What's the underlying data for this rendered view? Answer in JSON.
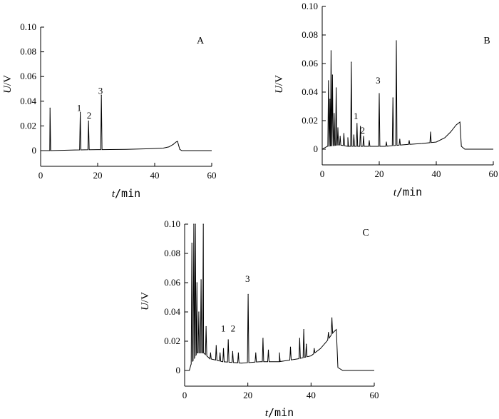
{
  "chart_data": [
    {
      "type": "line",
      "panel_label": "A",
      "xlabel_italic": "t",
      "xlabel_unit": "/min",
      "ylabel_italic": "U",
      "ylabel_unit": "/V",
      "xlim": [
        0,
        60
      ],
      "ylim": [
        0,
        0.1
      ],
      "xticks": [
        0,
        20,
        40,
        60
      ],
      "yticks": [
        0,
        0.02,
        0.04,
        0.06,
        0.08,
        0.1
      ],
      "ytick_labels": [
        "0",
        "0.02",
        "0.04",
        "0.06",
        "0.08",
        "0.10"
      ],
      "grid": false,
      "baseline": [
        [
          0,
          0
        ],
        [
          3.2,
          0
        ],
        [
          12,
          0.0005
        ],
        [
          20,
          0.0008
        ],
        [
          30,
          0.001
        ],
        [
          38,
          0.0015
        ],
        [
          43,
          0.002
        ],
        [
          45,
          0.003
        ],
        [
          46.5,
          0.005
        ],
        [
          47.5,
          0.007
        ],
        [
          48,
          0.0075
        ],
        [
          48.8,
          0.001
        ],
        [
          49.5,
          0
        ],
        [
          56,
          0
        ],
        [
          60,
          0
        ]
      ],
      "peaks": [
        {
          "x": 3.3,
          "y": 0.0345
        },
        {
          "x": 13.9,
          "y": 0.031
        },
        {
          "x": 16.8,
          "y": 0.024
        },
        {
          "x": 21.3,
          "y": 0.045
        }
      ],
      "annotations": [
        {
          "text": "1",
          "x": 13.5,
          "y": 0.032
        },
        {
          "text": "2",
          "x": 17.0,
          "y": 0.026
        },
        {
          "text": "3",
          "x": 21.0,
          "y": 0.046
        }
      ]
    },
    {
      "type": "line",
      "panel_label": "B",
      "xlabel_italic": "t",
      "xlabel_unit": "/min",
      "ylabel_italic": "U",
      "ylabel_unit": "/V",
      "xlim": [
        0,
        60
      ],
      "ylim": [
        0,
        0.1
      ],
      "xticks": [
        0,
        20,
        40,
        60
      ],
      "yticks": [
        0,
        0.02,
        0.04,
        0.06,
        0.08,
        0.1
      ],
      "ytick_labels": [
        "0",
        "0.02",
        "0.04",
        "0.06",
        "0.08",
        "0.10"
      ],
      "grid": false,
      "baseline": [
        [
          0,
          0
        ],
        [
          1.8,
          0.002
        ],
        [
          6,
          0.003
        ],
        [
          9,
          0.002
        ],
        [
          15,
          0.002
        ],
        [
          22,
          0.002
        ],
        [
          28,
          0.003
        ],
        [
          35,
          0.004
        ],
        [
          40,
          0.005
        ],
        [
          43,
          0.008
        ],
        [
          45,
          0.012
        ],
        [
          47,
          0.017
        ],
        [
          48.3,
          0.019
        ],
        [
          48.8,
          0.002
        ],
        [
          50,
          0
        ],
        [
          60,
          0
        ]
      ],
      "peaks": [
        {
          "x": 2.2,
          "y": 0.048
        },
        {
          "x": 2.7,
          "y": 0.035
        },
        {
          "x": 3.1,
          "y": 0.069
        },
        {
          "x": 3.6,
          "y": 0.052
        },
        {
          "x": 4.2,
          "y": 0.025
        },
        {
          "x": 4.9,
          "y": 0.043
        },
        {
          "x": 5.5,
          "y": 0.015
        },
        {
          "x": 6.3,
          "y": 0.009
        },
        {
          "x": 7.6,
          "y": 0.011
        },
        {
          "x": 9.0,
          "y": 0.008
        },
        {
          "x": 10.2,
          "y": 0.061
        },
        {
          "x": 11.1,
          "y": 0.01
        },
        {
          "x": 12.2,
          "y": 0.018
        },
        {
          "x": 13.4,
          "y": 0.016
        },
        {
          "x": 14.5,
          "y": 0.009
        },
        {
          "x": 16.5,
          "y": 0.006
        },
        {
          "x": 20.0,
          "y": 0.039
        },
        {
          "x": 22.5,
          "y": 0.005
        },
        {
          "x": 24.8,
          "y": 0.036
        },
        {
          "x": 26.0,
          "y": 0.076
        },
        {
          "x": 27.2,
          "y": 0.007
        },
        {
          "x": 30.5,
          "y": 0.006
        },
        {
          "x": 38.0,
          "y": 0.012
        }
      ],
      "annotations": [
        {
          "text": "1",
          "x": 11.8,
          "y": 0.021
        },
        {
          "text": "2",
          "x": 14.2,
          "y": 0.011
        },
        {
          "text": "3",
          "x": 19.6,
          "y": 0.046
        }
      ]
    },
    {
      "type": "line",
      "panel_label": "C",
      "xlabel_italic": "t",
      "xlabel_unit": "/min",
      "ylabel_italic": "U",
      "ylabel_unit": "/V",
      "xlim": [
        0,
        60
      ],
      "ylim": [
        0,
        0.1
      ],
      "xticks": [
        0,
        20,
        40,
        60
      ],
      "yticks": [
        0,
        0.02,
        0.04,
        0.06,
        0.08,
        0.1
      ],
      "ytick_labels": [
        "0",
        "0.02",
        "0.04",
        "0.06",
        "0.08",
        "0.10"
      ],
      "grid": false,
      "baseline": [
        [
          0,
          0
        ],
        [
          1.5,
          0
        ],
        [
          2.0,
          0.004
        ],
        [
          4,
          0.012
        ],
        [
          6,
          0.012
        ],
        [
          8,
          0.008
        ],
        [
          12,
          0.006
        ],
        [
          18,
          0.005
        ],
        [
          24,
          0.006
        ],
        [
          30,
          0.006
        ],
        [
          36,
          0.008
        ],
        [
          40,
          0.01
        ],
        [
          43,
          0.015
        ],
        [
          45,
          0.02
        ],
        [
          47,
          0.026
        ],
        [
          48,
          0.028
        ],
        [
          48.5,
          0.002
        ],
        [
          50,
          0
        ],
        [
          60,
          0
        ]
      ],
      "peaks": [
        {
          "x": 2.3,
          "y": 0.087
        },
        {
          "x": 2.9,
          "y": 0.1
        },
        {
          "x": 3.4,
          "y": 0.1
        },
        {
          "x": 3.9,
          "y": 0.06
        },
        {
          "x": 4.5,
          "y": 0.04
        },
        {
          "x": 5.2,
          "y": 0.062
        },
        {
          "x": 5.9,
          "y": 0.1
        },
        {
          "x": 6.8,
          "y": 0.03
        },
        {
          "x": 8.2,
          "y": 0.012
        },
        {
          "x": 10.0,
          "y": 0.017
        },
        {
          "x": 11.2,
          "y": 0.012
        },
        {
          "x": 12.3,
          "y": 0.015
        },
        {
          "x": 13.8,
          "y": 0.021
        },
        {
          "x": 15.2,
          "y": 0.013
        },
        {
          "x": 17.0,
          "y": 0.012
        },
        {
          "x": 20.1,
          "y": 0.052
        },
        {
          "x": 22.5,
          "y": 0.012
        },
        {
          "x": 24.8,
          "y": 0.022
        },
        {
          "x": 26.5,
          "y": 0.014
        },
        {
          "x": 30.0,
          "y": 0.012
        },
        {
          "x": 33.5,
          "y": 0.016
        },
        {
          "x": 36.4,
          "y": 0.022
        },
        {
          "x": 37.7,
          "y": 0.028
        },
        {
          "x": 38.5,
          "y": 0.018
        },
        {
          "x": 41.0,
          "y": 0.015
        },
        {
          "x": 45.5,
          "y": 0.026
        },
        {
          "x": 46.6,
          "y": 0.036
        }
      ],
      "annotations": [
        {
          "text": "1",
          "x": 12.2,
          "y": 0.0265
        },
        {
          "text": "2",
          "x": 15.3,
          "y": 0.0265
        },
        {
          "text": "3",
          "x": 19.9,
          "y": 0.0605
        }
      ]
    }
  ]
}
